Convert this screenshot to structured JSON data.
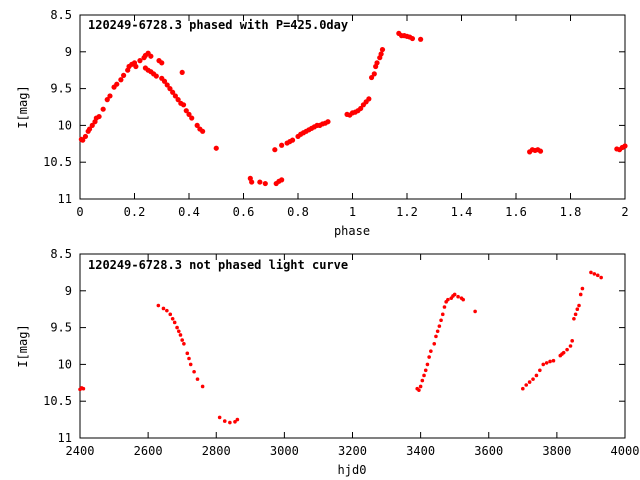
{
  "colors": {
    "points": "#ff0000",
    "axes": "#000000",
    "background": "#ffffff"
  },
  "chart_data": [
    {
      "type": "scatter",
      "title": "120249-6728.3 phased with P=425.0day",
      "xlabel": "phase",
      "ylabel": "I[mag]",
      "xlim": [
        0,
        2
      ],
      "ylim": [
        8.5,
        11
      ],
      "y_inverted": true,
      "grid": false,
      "x_ticks": [
        "0",
        "0.2",
        "0.4",
        "0.6",
        "0.8",
        "1",
        "1.2",
        "1.4",
        "1.6",
        "1.8",
        "2"
      ],
      "y_ticks": [
        "8.5",
        "9",
        "9.5",
        "10",
        "10.5",
        "11"
      ],
      "x_tick_values": [
        0,
        0.2,
        0.4,
        0.6,
        0.8,
        1,
        1.2,
        1.4,
        1.6,
        1.8,
        2
      ],
      "y_tick_values": [
        8.5,
        9,
        9.5,
        10,
        10.5,
        11
      ],
      "points": [
        [
          0.005,
          10.19
        ],
        [
          0.01,
          10.2
        ],
        [
          0.02,
          10.15
        ],
        [
          0.03,
          10.08
        ],
        [
          0.035,
          10.05
        ],
        [
          0.045,
          10.0
        ],
        [
          0.055,
          9.95
        ],
        [
          0.06,
          9.9
        ],
        [
          0.07,
          9.88
        ],
        [
          0.085,
          9.78
        ],
        [
          0.1,
          9.65
        ],
        [
          0.11,
          9.6
        ],
        [
          0.125,
          9.48
        ],
        [
          0.135,
          9.44
        ],
        [
          0.15,
          9.38
        ],
        [
          0.16,
          9.32
        ],
        [
          0.175,
          9.25
        ],
        [
          0.18,
          9.2
        ],
        [
          0.19,
          9.17
        ],
        [
          0.2,
          9.15
        ],
        [
          0.205,
          9.2
        ],
        [
          0.22,
          9.12
        ],
        [
          0.235,
          9.08
        ],
        [
          0.24,
          9.05
        ],
        [
          0.25,
          9.02
        ],
        [
          0.26,
          9.06
        ],
        [
          0.24,
          9.22
        ],
        [
          0.25,
          9.25
        ],
        [
          0.26,
          9.27
        ],
        [
          0.27,
          9.3
        ],
        [
          0.28,
          9.33
        ],
        [
          0.29,
          9.12
        ],
        [
          0.3,
          9.15
        ],
        [
          0.3,
          9.36
        ],
        [
          0.31,
          9.4
        ],
        [
          0.32,
          9.45
        ],
        [
          0.33,
          9.5
        ],
        [
          0.34,
          9.55
        ],
        [
          0.35,
          9.6
        ],
        [
          0.36,
          9.65
        ],
        [
          0.37,
          9.7
        ],
        [
          0.375,
          9.28
        ],
        [
          0.38,
          9.72
        ],
        [
          0.39,
          9.8
        ],
        [
          0.4,
          9.85
        ],
        [
          0.41,
          9.9
        ],
        [
          0.43,
          10.0
        ],
        [
          0.44,
          10.05
        ],
        [
          0.45,
          10.08
        ],
        [
          0.5,
          10.31
        ],
        [
          0.625,
          10.72
        ],
        [
          0.63,
          10.77
        ],
        [
          0.66,
          10.77
        ],
        [
          0.68,
          10.79
        ],
        [
          0.715,
          10.33
        ],
        [
          0.72,
          10.79
        ],
        [
          0.73,
          10.76
        ],
        [
          0.74,
          10.27
        ],
        [
          0.74,
          10.74
        ],
        [
          0.76,
          10.24
        ],
        [
          0.77,
          10.22
        ],
        [
          0.78,
          10.2
        ],
        [
          0.8,
          10.15
        ],
        [
          0.81,
          10.12
        ],
        [
          0.82,
          10.1
        ],
        [
          0.83,
          10.08
        ],
        [
          0.84,
          10.06
        ],
        [
          0.85,
          10.04
        ],
        [
          0.86,
          10.02
        ],
        [
          0.87,
          10.0
        ],
        [
          0.88,
          10.0
        ],
        [
          0.89,
          9.98
        ],
        [
          0.9,
          9.97
        ],
        [
          0.91,
          9.95
        ],
        [
          0.98,
          9.85
        ],
        [
          0.99,
          9.86
        ],
        [
          1.0,
          9.83
        ],
        [
          1.01,
          9.82
        ],
        [
          1.02,
          9.8
        ],
        [
          1.03,
          9.77
        ],
        [
          1.04,
          9.72
        ],
        [
          1.05,
          9.68
        ],
        [
          1.06,
          9.64
        ],
        [
          1.07,
          9.35
        ],
        [
          1.08,
          9.3
        ],
        [
          1.085,
          9.2
        ],
        [
          1.09,
          9.15
        ],
        [
          1.1,
          9.08
        ],
        [
          1.105,
          9.03
        ],
        [
          1.11,
          8.97
        ],
        [
          1.17,
          8.75
        ],
        [
          1.18,
          8.78
        ],
        [
          1.19,
          8.78
        ],
        [
          1.2,
          8.79
        ],
        [
          1.21,
          8.8
        ],
        [
          1.22,
          8.82
        ],
        [
          1.25,
          8.83
        ],
        [
          1.65,
          10.36
        ],
        [
          1.66,
          10.33
        ],
        [
          1.67,
          10.34
        ],
        [
          1.68,
          10.33
        ],
        [
          1.69,
          10.35
        ],
        [
          1.97,
          10.32
        ],
        [
          1.98,
          10.33
        ],
        [
          1.99,
          10.3
        ],
        [
          2.0,
          10.28
        ]
      ]
    },
    {
      "type": "scatter",
      "title": "120249-6728.3 not phased light curve",
      "xlabel": "hjd0",
      "ylabel": "I[mag]",
      "xlim": [
        2400,
        4000
      ],
      "ylim": [
        8.5,
        11
      ],
      "y_inverted": true,
      "grid": false,
      "x_ticks": [
        "2400",
        "2600",
        "2800",
        "3000",
        "3200",
        "3400",
        "3600",
        "3800",
        "4000"
      ],
      "y_ticks": [
        "8.5",
        "9",
        "9.5",
        "10",
        "10.5",
        "11"
      ],
      "x_tick_values": [
        2400,
        2600,
        2800,
        3000,
        3200,
        3400,
        3600,
        3800,
        4000
      ],
      "y_tick_values": [
        8.5,
        9,
        9.5,
        10,
        10.5,
        11
      ],
      "points": [
        [
          2400,
          10.34
        ],
        [
          2405,
          10.32
        ],
        [
          2410,
          10.33
        ],
        [
          2630,
          9.2
        ],
        [
          2645,
          9.24
        ],
        [
          2655,
          9.27
        ],
        [
          2665,
          9.32
        ],
        [
          2672,
          9.38
        ],
        [
          2678,
          9.43
        ],
        [
          2685,
          9.5
        ],
        [
          2690,
          9.55
        ],
        [
          2695,
          9.6
        ],
        [
          2700,
          9.67
        ],
        [
          2705,
          9.72
        ],
        [
          2715,
          9.85
        ],
        [
          2720,
          9.92
        ],
        [
          2725,
          10.0
        ],
        [
          2735,
          10.1
        ],
        [
          2745,
          10.2
        ],
        [
          2760,
          10.3
        ],
        [
          2810,
          10.72
        ],
        [
          2825,
          10.77
        ],
        [
          2840,
          10.79
        ],
        [
          2855,
          10.78
        ],
        [
          2862,
          10.75
        ],
        [
          3390,
          10.33
        ],
        [
          3395,
          10.35
        ],
        [
          3400,
          10.3
        ],
        [
          3405,
          10.22
        ],
        [
          3410,
          10.15
        ],
        [
          3415,
          10.08
        ],
        [
          3420,
          10.0
        ],
        [
          3425,
          9.9
        ],
        [
          3430,
          9.82
        ],
        [
          3440,
          9.72
        ],
        [
          3445,
          9.62
        ],
        [
          3450,
          9.55
        ],
        [
          3455,
          9.48
        ],
        [
          3460,
          9.4
        ],
        [
          3465,
          9.32
        ],
        [
          3470,
          9.22
        ],
        [
          3475,
          9.15
        ],
        [
          3480,
          9.12
        ],
        [
          3490,
          9.1
        ],
        [
          3495,
          9.07
        ],
        [
          3500,
          9.05
        ],
        [
          3510,
          9.08
        ],
        [
          3520,
          9.1
        ],
        [
          3525,
          9.12
        ],
        [
          3560,
          9.28
        ],
        [
          3700,
          10.33
        ],
        [
          3710,
          10.28
        ],
        [
          3720,
          10.24
        ],
        [
          3730,
          10.2
        ],
        [
          3740,
          10.15
        ],
        [
          3750,
          10.08
        ],
        [
          3760,
          10.0
        ],
        [
          3770,
          9.98
        ],
        [
          3780,
          9.96
        ],
        [
          3790,
          9.95
        ],
        [
          3810,
          9.88
        ],
        [
          3815,
          9.86
        ],
        [
          3820,
          9.84
        ],
        [
          3830,
          9.8
        ],
        [
          3840,
          9.75
        ],
        [
          3845,
          9.68
        ],
        [
          3850,
          9.38
        ],
        [
          3855,
          9.32
        ],
        [
          3860,
          9.25
        ],
        [
          3865,
          9.2
        ],
        [
          3870,
          9.05
        ],
        [
          3875,
          8.97
        ],
        [
          3900,
          8.75
        ],
        [
          3910,
          8.77
        ],
        [
          3920,
          8.79
        ],
        [
          3930,
          8.82
        ]
      ]
    }
  ]
}
